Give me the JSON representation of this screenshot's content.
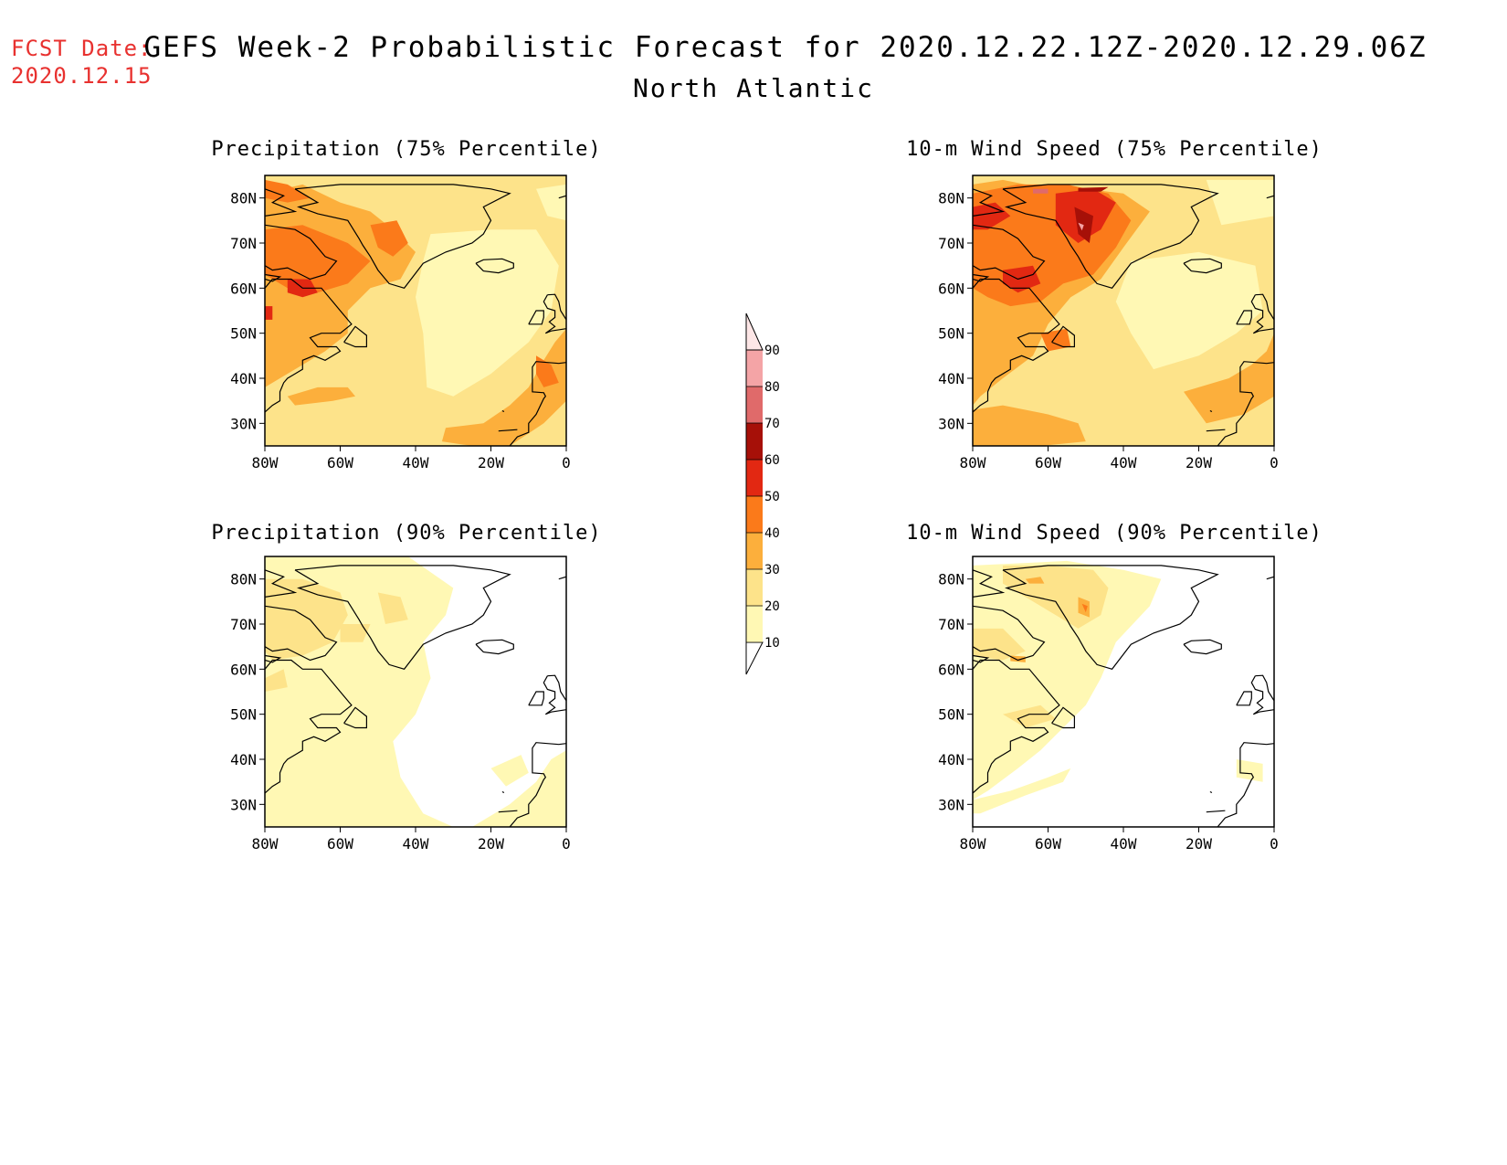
{
  "header": {
    "fcst_label": "FCST Date:",
    "fcst_date": "2020.12.15",
    "title": "GEFS Week-2 Probabilistic Forecast for 2020.12.22.12Z-2020.12.29.06Z",
    "subtitle": "North Atlantic"
  },
  "colors": {
    "c10": "#fff8b4",
    "c20": "#fde38a",
    "c30": "#fcaf3c",
    "c40": "#fb7a1a",
    "c50": "#e22812",
    "c60": "#a61008",
    "c70": "#e06a6a",
    "c80": "#f4a4a6",
    "c90": "#fde6e6",
    "coast": "#000000"
  },
  "colorbar": {
    "levels": [
      "10",
      "20",
      "30",
      "40",
      "50",
      "60",
      "70",
      "80",
      "90"
    ]
  },
  "panels": [
    {
      "id": "precip75",
      "title": "Precipitation (75% Percentile)",
      "lat_labels": [
        "80N",
        "70N",
        "60N",
        "50N",
        "40N",
        "30N"
      ],
      "lon_labels": [
        "80W",
        "60W",
        "40W",
        "20W",
        "0"
      ]
    },
    {
      "id": "wind75",
      "title": "10-m Wind Speed (75% Percentile)",
      "lat_labels": [
        "80N",
        "70N",
        "60N",
        "50N",
        "40N",
        "30N"
      ],
      "lon_labels": [
        "80W",
        "60W",
        "40W",
        "20W",
        "0"
      ]
    },
    {
      "id": "precip90",
      "title": "Precipitation (90% Percentile)",
      "lat_labels": [
        "80N",
        "70N",
        "60N",
        "50N",
        "40N",
        "30N"
      ],
      "lon_labels": [
        "80W",
        "60W",
        "40W",
        "20W",
        "0"
      ]
    },
    {
      "id": "wind90",
      "title": "10-m Wind Speed (90% Percentile)",
      "lat_labels": [
        "80N",
        "70N",
        "60N",
        "50N",
        "40N",
        "30N"
      ],
      "lon_labels": [
        "80W",
        "60W",
        "40W",
        "20W",
        "0"
      ]
    }
  ]
}
